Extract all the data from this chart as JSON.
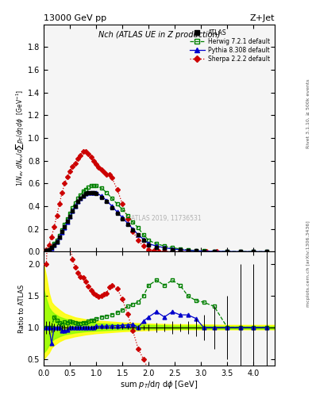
{
  "title_top": "13000 GeV pp",
  "title_top_right": "Z+Jet",
  "plot_title": "Nch (ATLAS UE in Z production)",
  "ylabel_main": "1/N$_{ev}$ dN$_{ev}$/dsum p$_T$/dη dφ  [GeV$^{-1}$]",
  "ylabel_ratio": "Ratio to ATLAS",
  "xlabel": "sum p$_T$/dη dφ [GeV]",
  "right_label_top": "Rivet 3.1.10, ≥ 500k events",
  "right_label_bot": "mcplots.cern.ch [arXiv:1306.3436]",
  "watermark": "ATLAS 2019, 11736531",
  "ylim_main": [
    0,
    2.0
  ],
  "ylim_ratio": [
    0.4,
    2.2
  ],
  "xlim": [
    0.0,
    4.4
  ],
  "yticks_main": [
    0,
    0.2,
    0.4,
    0.6,
    0.8,
    1.0,
    1.2,
    1.4,
    1.6,
    1.8
  ],
  "yticks_ratio": [
    0.5,
    1.0,
    1.5,
    2.0
  ],
  "atlas_x": [
    0.05,
    0.1,
    0.15,
    0.2,
    0.25,
    0.3,
    0.35,
    0.4,
    0.45,
    0.5,
    0.55,
    0.6,
    0.65,
    0.7,
    0.75,
    0.8,
    0.85,
    0.9,
    0.95,
    1.0,
    1.1,
    1.2,
    1.3,
    1.4,
    1.5,
    1.6,
    1.7,
    1.8,
    1.9,
    2.0,
    2.15,
    2.3,
    2.45,
    2.6,
    2.75,
    2.9,
    3.05,
    3.25,
    3.5,
    3.75,
    4.0,
    4.25
  ],
  "atlas_y": [
    0.01,
    0.02,
    0.04,
    0.06,
    0.09,
    0.13,
    0.18,
    0.22,
    0.27,
    0.31,
    0.36,
    0.4,
    0.44,
    0.47,
    0.49,
    0.51,
    0.52,
    0.52,
    0.52,
    0.51,
    0.48,
    0.44,
    0.39,
    0.34,
    0.29,
    0.24,
    0.19,
    0.15,
    0.1,
    0.06,
    0.04,
    0.03,
    0.02,
    0.015,
    0.01,
    0.007,
    0.005,
    0.003,
    0.002,
    0.001,
    0.001,
    0.0005
  ],
  "atlas_yerr": [
    0.001,
    0.002,
    0.003,
    0.004,
    0.005,
    0.006,
    0.007,
    0.008,
    0.009,
    0.01,
    0.01,
    0.01,
    0.01,
    0.01,
    0.01,
    0.01,
    0.01,
    0.01,
    0.01,
    0.01,
    0.01,
    0.01,
    0.009,
    0.008,
    0.007,
    0.006,
    0.005,
    0.005,
    0.004,
    0.003,
    0.003,
    0.002,
    0.002,
    0.001,
    0.001,
    0.001,
    0.001,
    0.001,
    0.001,
    0.001,
    0.001,
    0.001
  ],
  "atlas_color": "#000000",
  "herwig_x": [
    0.05,
    0.1,
    0.15,
    0.2,
    0.25,
    0.3,
    0.35,
    0.4,
    0.45,
    0.5,
    0.55,
    0.6,
    0.65,
    0.7,
    0.75,
    0.8,
    0.85,
    0.9,
    0.95,
    1.0,
    1.1,
    1.2,
    1.3,
    1.4,
    1.5,
    1.6,
    1.7,
    1.8,
    1.9,
    2.0,
    2.15,
    2.3,
    2.45,
    2.6,
    2.75,
    2.9,
    3.05,
    3.25,
    3.5,
    3.75,
    4.0,
    4.25
  ],
  "herwig_y": [
    0.01,
    0.02,
    0.04,
    0.07,
    0.1,
    0.14,
    0.19,
    0.24,
    0.29,
    0.34,
    0.39,
    0.43,
    0.47,
    0.5,
    0.53,
    0.55,
    0.57,
    0.58,
    0.58,
    0.58,
    0.56,
    0.52,
    0.47,
    0.42,
    0.37,
    0.32,
    0.26,
    0.21,
    0.15,
    0.1,
    0.07,
    0.05,
    0.035,
    0.025,
    0.015,
    0.01,
    0.007,
    0.004,
    0.002,
    0.001,
    0.001,
    0.0005
  ],
  "herwig_color": "#008000",
  "pythia_x": [
    0.05,
    0.1,
    0.15,
    0.2,
    0.25,
    0.3,
    0.35,
    0.4,
    0.45,
    0.5,
    0.55,
    0.6,
    0.65,
    0.7,
    0.75,
    0.8,
    0.85,
    0.9,
    0.95,
    1.0,
    1.1,
    1.2,
    1.3,
    1.4,
    1.5,
    1.6,
    1.7,
    1.8,
    1.9,
    2.0,
    2.15,
    2.3,
    2.45,
    2.6,
    2.75,
    2.9,
    3.05,
    3.25,
    3.5,
    3.75,
    4.0,
    4.25
  ],
  "pythia_y": [
    0.01,
    0.02,
    0.03,
    0.06,
    0.09,
    0.13,
    0.17,
    0.21,
    0.26,
    0.31,
    0.36,
    0.4,
    0.44,
    0.47,
    0.49,
    0.51,
    0.52,
    0.52,
    0.52,
    0.52,
    0.49,
    0.45,
    0.4,
    0.35,
    0.3,
    0.25,
    0.2,
    0.15,
    0.11,
    0.07,
    0.05,
    0.035,
    0.025,
    0.018,
    0.012,
    0.008,
    0.005,
    0.003,
    0.002,
    0.001,
    0.001,
    0.0005
  ],
  "pythia_color": "#0000cc",
  "sherpa_x": [
    0.05,
    0.1,
    0.15,
    0.2,
    0.25,
    0.3,
    0.35,
    0.4,
    0.45,
    0.5,
    0.55,
    0.6,
    0.65,
    0.7,
    0.75,
    0.8,
    0.85,
    0.9,
    0.95,
    1.0,
    1.05,
    1.1,
    1.15,
    1.2,
    1.25,
    1.3,
    1.4,
    1.5,
    1.6,
    1.7,
    1.8,
    1.9,
    2.0,
    2.1,
    2.2,
    2.3,
    2.45,
    2.6,
    2.75,
    2.9,
    3.1,
    3.3
  ],
  "sherpa_y": [
    0.02,
    0.06,
    0.13,
    0.22,
    0.32,
    0.42,
    0.52,
    0.6,
    0.66,
    0.71,
    0.75,
    0.78,
    0.82,
    0.85,
    0.88,
    0.88,
    0.86,
    0.83,
    0.8,
    0.77,
    0.74,
    0.72,
    0.7,
    0.68,
    0.68,
    0.65,
    0.55,
    0.42,
    0.29,
    0.18,
    0.1,
    0.05,
    0.02,
    0.01,
    0.005,
    0.003,
    0.001,
    0.001,
    0.0005,
    0.0003,
    0.0001,
    5e-05
  ],
  "sherpa_color": "#cc0000",
  "yellow_band_x": [
    0.0,
    0.05,
    0.1,
    0.15,
    0.2,
    0.3,
    0.4,
    0.6,
    0.8,
    1.0,
    1.5,
    2.0,
    2.5,
    3.0,
    3.5,
    4.0,
    4.4
  ],
  "yellow_band_low": [
    0.5,
    0.55,
    0.6,
    0.68,
    0.72,
    0.78,
    0.82,
    0.86,
    0.89,
    0.91,
    0.94,
    0.96,
    0.97,
    0.97,
    0.97,
    0.97,
    0.97
  ],
  "yellow_band_hi": [
    2.0,
    1.8,
    1.55,
    1.4,
    1.35,
    1.28,
    1.22,
    1.16,
    1.13,
    1.11,
    1.08,
    1.06,
    1.05,
    1.05,
    1.04,
    1.04,
    1.04
  ],
  "green_band_x": [
    0.0,
    0.05,
    0.1,
    0.15,
    0.2,
    0.3,
    0.4,
    0.6,
    0.8,
    1.0,
    1.5,
    2.0,
    2.5,
    3.0,
    3.5,
    4.0,
    4.4
  ],
  "green_band_low": [
    0.6,
    0.65,
    0.72,
    0.78,
    0.82,
    0.86,
    0.89,
    0.92,
    0.94,
    0.95,
    0.97,
    0.98,
    0.98,
    0.98,
    0.98,
    0.98,
    0.98
  ],
  "green_band_hi": [
    1.6,
    1.45,
    1.32,
    1.26,
    1.22,
    1.17,
    1.14,
    1.1,
    1.08,
    1.07,
    1.05,
    1.04,
    1.03,
    1.03,
    1.02,
    1.02,
    1.02
  ],
  "bg_color": "#f5f5f5"
}
